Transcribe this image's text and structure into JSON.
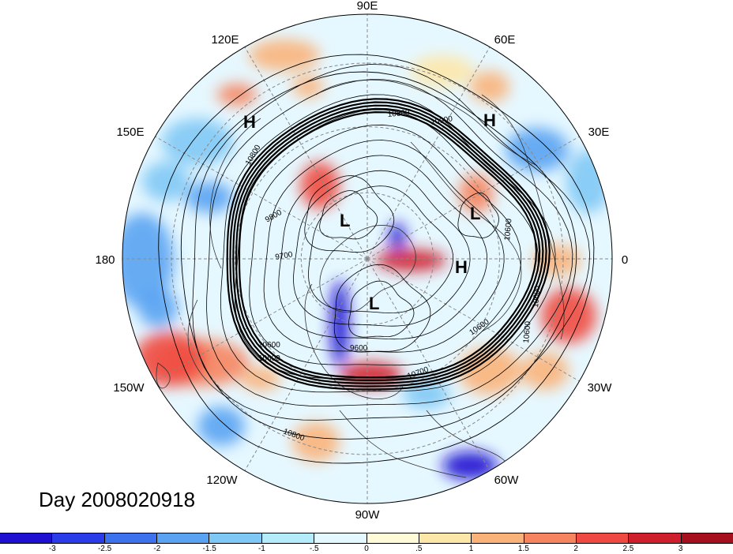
{
  "title": "Day 2008020918",
  "longitude_labels": [
    {
      "id": "lon-90e",
      "text": "90E"
    },
    {
      "id": "lon-60e",
      "text": "60E"
    },
    {
      "id": "lon-30e",
      "text": "30E"
    },
    {
      "id": "lon-0",
      "text": "0"
    },
    {
      "id": "lon-30w",
      "text": "30W"
    },
    {
      "id": "lon-60w",
      "text": "60W"
    },
    {
      "id": "lon-90w",
      "text": "90W"
    },
    {
      "id": "lon-120w",
      "text": "120W"
    },
    {
      "id": "lon-150w",
      "text": "150W"
    },
    {
      "id": "lon-180",
      "text": "180"
    },
    {
      "id": "lon-150e",
      "text": "150E"
    },
    {
      "id": "lon-120e",
      "text": "120E"
    }
  ],
  "pressure_centers": [
    {
      "id": "high-nw",
      "text": "H"
    },
    {
      "id": "high-ne",
      "text": "H"
    },
    {
      "id": "high-center",
      "text": "H"
    },
    {
      "id": "low-siberia",
      "text": "L"
    },
    {
      "id": "low-europe",
      "text": "L"
    },
    {
      "id": "low-canada",
      "text": "L"
    }
  ],
  "contour_labels": [
    {
      "id": "c1",
      "text": "10800"
    },
    {
      "id": "c2",
      "text": "10900"
    },
    {
      "id": "c3",
      "text": "10800"
    },
    {
      "id": "c4",
      "text": "9800"
    },
    {
      "id": "c5",
      "text": "9700"
    },
    {
      "id": "c6",
      "text": "9600"
    },
    {
      "id": "c7",
      "text": "10600"
    },
    {
      "id": "c8",
      "text": "10600"
    },
    {
      "id": "c9",
      "text": "10700"
    },
    {
      "id": "c10",
      "text": "10800"
    },
    {
      "id": "c11",
      "text": "10600"
    },
    {
      "id": "c12",
      "text": "10600"
    },
    {
      "id": "c13",
      "text": "10600"
    },
    {
      "id": "c14",
      "text": "10600"
    }
  ],
  "colorbar": {
    "colors": [
      "#1f0fd0",
      "#2a3ce8",
      "#3d72ee",
      "#5aa3f2",
      "#7fc8f5",
      "#b4ecfc",
      "#e4f9ff",
      "#fffbd8",
      "#fde7a8",
      "#f9b37a",
      "#f6845e",
      "#ef4a41",
      "#cf1e2c",
      "#a50f1e"
    ],
    "labels": [
      "-3",
      "-2.5",
      "-2",
      "-1.5",
      "-1",
      "-.5",
      "0",
      ".5",
      "1",
      "1.5",
      "2",
      "2.5",
      "3"
    ]
  }
}
